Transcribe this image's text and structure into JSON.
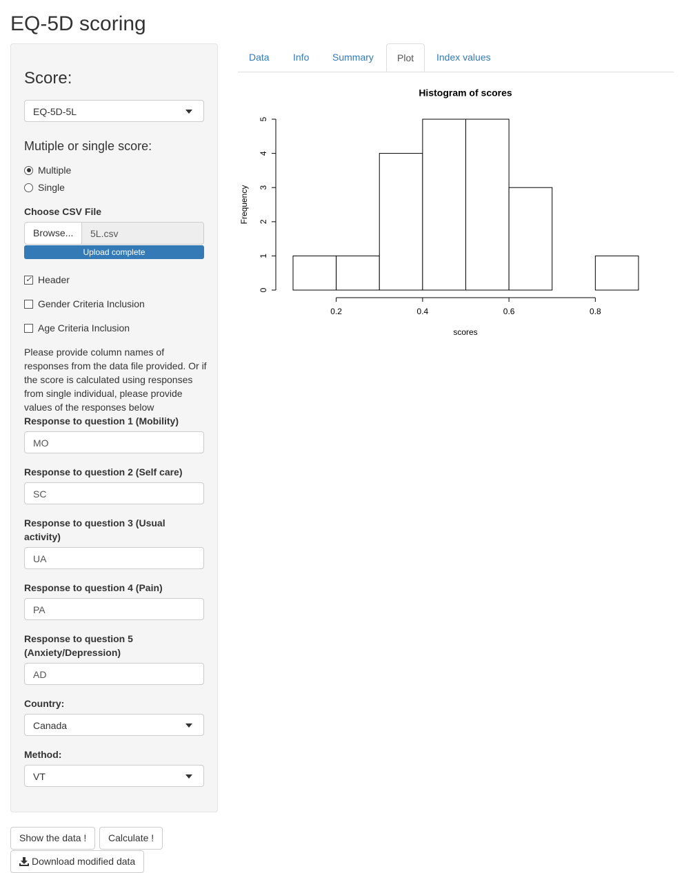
{
  "header": {
    "title": "EQ-5D scoring"
  },
  "tabs": [
    "Data",
    "Info",
    "Summary",
    "Plot",
    "Index values"
  ],
  "sidebar": {
    "score_label": "Score:",
    "score_value": "EQ-5D-5L",
    "mode_label": "Mutiple or single score:",
    "mode_options": [
      "Multiple",
      "Single"
    ],
    "file_label": "Choose CSV File",
    "browse": "Browse...",
    "file_name": "5L.csv",
    "progress": "Upload complete",
    "checkboxes": [
      "Header",
      "Gender Criteria Inclusion",
      "Age Criteria Inclusion"
    ],
    "help_text": "Please provide column names of responses from the data file provided. Or if the score is calculated using responses from single individual, please provide values of the responses below",
    "questions": [
      {
        "label": "Response to question 1 (Mobility)",
        "value": "MO"
      },
      {
        "label": "Response to question 2 (Self care)",
        "value": "SC"
      },
      {
        "label": "Response to question 3 (Usual activity)",
        "value": "UA"
      },
      {
        "label": "Response to question 4 (Pain)",
        "value": "PA"
      },
      {
        "label": "Response to question 5 (Anxiety/Depression)",
        "value": "AD"
      }
    ],
    "country_label": "Country:",
    "country_value": "Canada",
    "method_label": "Method:",
    "method_value": "VT"
  },
  "buttons": [
    "Show the data !",
    "Calculate !",
    "Download modified data"
  ],
  "chart_data": {
    "type": "histogram",
    "title": "Histogram of scores",
    "x_label": "scores",
    "y_label": "Frequency",
    "bins": [
      0.1,
      0.2,
      0.3,
      0.4,
      0.5,
      0.6,
      0.7,
      0.8,
      0.9
    ],
    "values": [
      1,
      1,
      4,
      5,
      5,
      3,
      0,
      1
    ],
    "color": "#ffffff",
    "edgecolor": "#000000",
    "xlim": [
      0.1,
      0.9
    ],
    "xticks": [
      0.2,
      0.4,
      0.6,
      0.8
    ],
    "ylim": [
      0,
      5
    ],
    "yticks": [
      0,
      1,
      2,
      3,
      4,
      5
    ]
  }
}
